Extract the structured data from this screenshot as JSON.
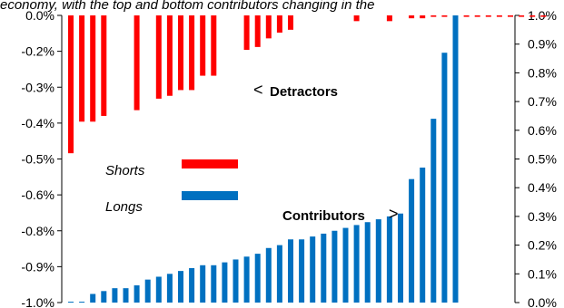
{
  "chart_data": {
    "type": "bar",
    "title_fragment": "economy, with the top and bottom contributors changing in the",
    "left_axis": {
      "tick_labels": [
        "0.0%",
        "-0.2%",
        "-0.3%",
        "-0.4%",
        "-0.5%",
        "-0.6%",
        "-0.8%",
        "-0.9%",
        "-1.0%"
      ],
      "range": [
        -1.0,
        0.0
      ]
    },
    "right_axis": {
      "tick_labels": [
        "1.0%",
        "0.9%",
        "0.8%",
        "0.7%",
        "0.6%",
        "0.5%",
        "0.4%",
        "0.3%",
        "0.2%",
        "0.1%",
        "0.0%"
      ],
      "range": [
        0.0,
        1.0
      ]
    },
    "series": [
      {
        "name": "Shorts",
        "color": "#ff0000",
        "axis": "left",
        "values": [
          [
            0,
            -0.48
          ],
          [
            1,
            -0.37
          ],
          [
            2,
            -0.37
          ],
          [
            3,
            -0.35
          ],
          [
            6,
            -0.33
          ],
          [
            8,
            -0.29
          ],
          [
            9,
            -0.28
          ],
          [
            10,
            -0.26
          ],
          [
            11,
            -0.26
          ],
          [
            12,
            -0.21
          ],
          [
            13,
            -0.21
          ],
          [
            16,
            -0.12
          ],
          [
            17,
            -0.11
          ],
          [
            18,
            -0.08
          ],
          [
            19,
            -0.06
          ],
          [
            20,
            -0.05
          ],
          [
            26,
            -0.02
          ],
          [
            29,
            -0.02
          ],
          [
            31,
            -0.01
          ],
          [
            32,
            -0.01
          ],
          [
            33,
            -0.005
          ],
          [
            34,
            -0.005
          ],
          [
            35,
            -0.005
          ],
          [
            36,
            -0.005
          ],
          [
            37,
            -0.005
          ],
          [
            38,
            -0.005
          ],
          [
            39,
            -0.005
          ],
          [
            40,
            -0.005
          ],
          [
            41,
            -0.005
          ],
          [
            42,
            -0.005
          ],
          [
            43,
            -0.005
          ]
        ]
      },
      {
        "name": "Longs",
        "color": "#0070c0",
        "axis": "right",
        "values": [
          [
            0,
            0.003
          ],
          [
            1,
            0.003
          ],
          [
            2,
            0.03
          ],
          [
            3,
            0.04
          ],
          [
            4,
            0.05
          ],
          [
            5,
            0.05
          ],
          [
            6,
            0.06
          ],
          [
            7,
            0.08
          ],
          [
            8,
            0.09
          ],
          [
            9,
            0.1
          ],
          [
            10,
            0.11
          ],
          [
            11,
            0.12
          ],
          [
            12,
            0.13
          ],
          [
            13,
            0.13
          ],
          [
            14,
            0.14
          ],
          [
            15,
            0.15
          ],
          [
            16,
            0.16
          ],
          [
            17,
            0.17
          ],
          [
            18,
            0.19
          ],
          [
            19,
            0.2
          ],
          [
            20,
            0.22
          ],
          [
            21,
            0.22
          ],
          [
            22,
            0.23
          ],
          [
            23,
            0.24
          ],
          [
            24,
            0.25
          ],
          [
            25,
            0.26
          ],
          [
            26,
            0.27
          ],
          [
            27,
            0.28
          ],
          [
            28,
            0.29
          ],
          [
            29,
            0.3
          ],
          [
            30,
            0.31
          ],
          [
            31,
            0.43
          ],
          [
            32,
            0.47
          ],
          [
            33,
            0.64
          ],
          [
            34,
            0.87
          ],
          [
            35,
            1.0
          ]
        ]
      }
    ],
    "annotations": {
      "detractors": "Detractors",
      "contributors": "Contributors",
      "left_arrow": "<",
      "right_arrow": ">"
    },
    "legend": {
      "placement": "left-middle",
      "shorts_label": "Shorts",
      "longs_label": "Longs"
    },
    "grid": false
  }
}
